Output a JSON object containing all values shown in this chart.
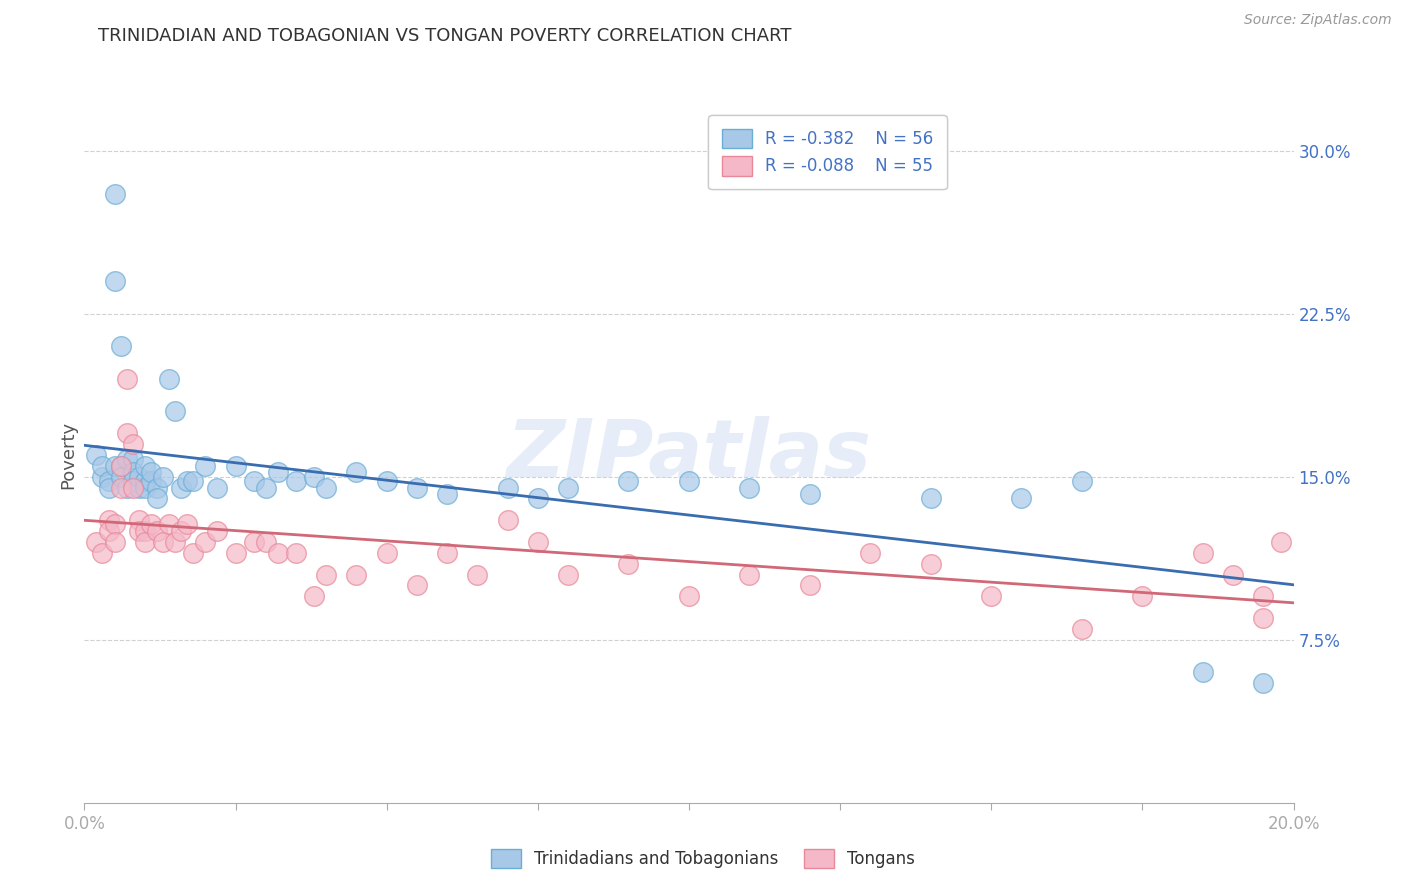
{
  "title": "TRINIDADIAN AND TOBAGONIAN VS TONGAN POVERTY CORRELATION CHART",
  "source": "Source: ZipAtlas.com",
  "ylabel": "Poverty",
  "xlim": [
    0.0,
    0.2
  ],
  "ylim": [
    0.0,
    0.32
  ],
  "xticks": [
    0.0,
    0.025,
    0.05,
    0.075,
    0.1,
    0.125,
    0.15,
    0.175,
    0.2
  ],
  "xtick_labels_show": [
    "0.0%",
    "",
    "",
    "",
    "",
    "",
    "",
    "",
    "20.0%"
  ],
  "yticks": [
    0.075,
    0.15,
    0.225,
    0.3
  ],
  "ytick_labels": [
    "7.5%",
    "15.0%",
    "22.5%",
    "30.0%"
  ],
  "blue_color": "#a8c8e8",
  "blue_edge": "#6aaed6",
  "pink_color": "#f4b8c8",
  "pink_edge": "#e88898",
  "trend_blue": "#3a6cb0",
  "trend_pink": "#d06878",
  "legend_R1": "-0.382",
  "legend_N1": "56",
  "legend_R2": "-0.088",
  "legend_N2": "55",
  "legend_label1": "Trinidadians and Tobagonians",
  "legend_label2": "Tongans",
  "watermark": "ZIPatlas",
  "blue_scatter_x": [
    0.002,
    0.003,
    0.003,
    0.004,
    0.004,
    0.005,
    0.005,
    0.005,
    0.006,
    0.006,
    0.006,
    0.007,
    0.007,
    0.008,
    0.008,
    0.008,
    0.009,
    0.009,
    0.01,
    0.01,
    0.01,
    0.011,
    0.011,
    0.012,
    0.012,
    0.013,
    0.014,
    0.015,
    0.016,
    0.017,
    0.018,
    0.02,
    0.022,
    0.025,
    0.028,
    0.03,
    0.032,
    0.035,
    0.038,
    0.04,
    0.045,
    0.05,
    0.055,
    0.06,
    0.07,
    0.075,
    0.08,
    0.09,
    0.1,
    0.11,
    0.12,
    0.14,
    0.155,
    0.165,
    0.185,
    0.195
  ],
  "blue_scatter_y": [
    0.16,
    0.15,
    0.155,
    0.148,
    0.145,
    0.28,
    0.24,
    0.155,
    0.21,
    0.155,
    0.15,
    0.145,
    0.158,
    0.158,
    0.152,
    0.148,
    0.145,
    0.15,
    0.148,
    0.145,
    0.155,
    0.148,
    0.152,
    0.145,
    0.14,
    0.15,
    0.195,
    0.18,
    0.145,
    0.148,
    0.148,
    0.155,
    0.145,
    0.155,
    0.148,
    0.145,
    0.152,
    0.148,
    0.15,
    0.145,
    0.152,
    0.148,
    0.145,
    0.142,
    0.145,
    0.14,
    0.145,
    0.148,
    0.148,
    0.145,
    0.142,
    0.14,
    0.14,
    0.148,
    0.06,
    0.055
  ],
  "pink_scatter_x": [
    0.002,
    0.003,
    0.004,
    0.004,
    0.005,
    0.005,
    0.006,
    0.006,
    0.007,
    0.007,
    0.008,
    0.008,
    0.009,
    0.009,
    0.01,
    0.01,
    0.011,
    0.012,
    0.013,
    0.014,
    0.015,
    0.016,
    0.017,
    0.018,
    0.02,
    0.022,
    0.025,
    0.028,
    0.03,
    0.032,
    0.035,
    0.038,
    0.04,
    0.045,
    0.05,
    0.055,
    0.06,
    0.065,
    0.07,
    0.075,
    0.08,
    0.09,
    0.1,
    0.11,
    0.12,
    0.13,
    0.14,
    0.15,
    0.165,
    0.175,
    0.185,
    0.19,
    0.195,
    0.195,
    0.198
  ],
  "pink_scatter_y": [
    0.12,
    0.115,
    0.13,
    0.125,
    0.128,
    0.12,
    0.155,
    0.145,
    0.195,
    0.17,
    0.165,
    0.145,
    0.13,
    0.125,
    0.125,
    0.12,
    0.128,
    0.125,
    0.12,
    0.128,
    0.12,
    0.125,
    0.128,
    0.115,
    0.12,
    0.125,
    0.115,
    0.12,
    0.12,
    0.115,
    0.115,
    0.095,
    0.105,
    0.105,
    0.115,
    0.1,
    0.115,
    0.105,
    0.13,
    0.12,
    0.105,
    0.11,
    0.095,
    0.105,
    0.1,
    0.115,
    0.11,
    0.095,
    0.08,
    0.095,
    0.115,
    0.105,
    0.085,
    0.095,
    0.12
  ]
}
